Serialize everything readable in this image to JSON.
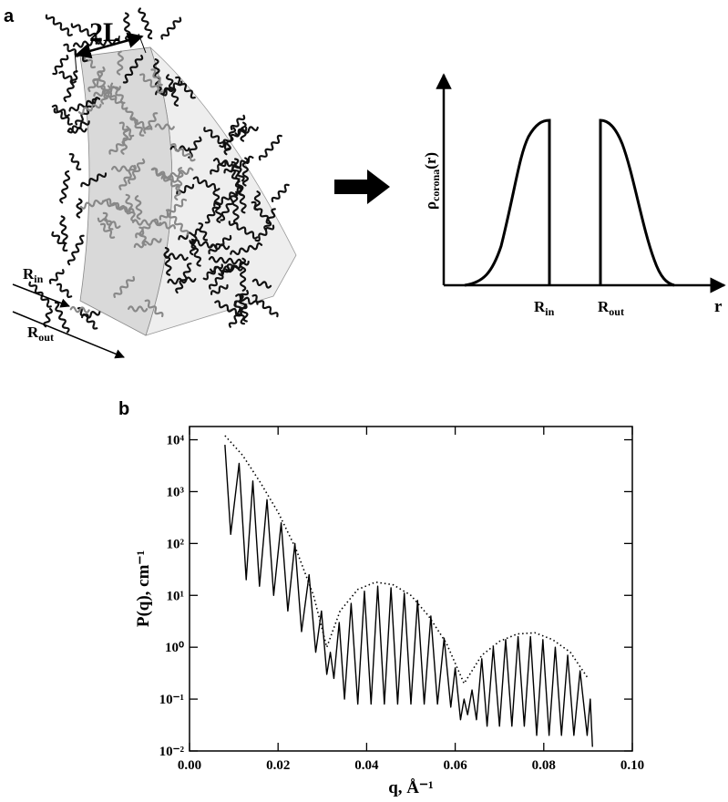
{
  "diagram": {
    "panel_label": "a",
    "two_l": "2L",
    "r_in": {
      "base": "R",
      "sub": "in"
    },
    "r_out": {
      "base": "R",
      "sub": "out"
    }
  },
  "profile": {
    "y_label": {
      "base": "ρ",
      "sub": "corona",
      "suffix": "(r)"
    },
    "tick_in": {
      "base": "R",
      "sub": "in"
    },
    "tick_out": {
      "base": "R",
      "sub": "out"
    },
    "x_label": "r"
  },
  "panel_b_label": "b",
  "chart_data": {
    "type": "line",
    "x_label": "q, Å⁻¹",
    "y_label": "P(q), cm⁻¹",
    "log_y": true,
    "xlim": [
      0,
      0.1
    ],
    "ylim": [
      0.01,
      18000
    ],
    "xticks": [
      {
        "value": 0,
        "label": "0.00"
      },
      {
        "value": 0.02,
        "label": "0.02"
      },
      {
        "value": 0.04,
        "label": "0.04"
      },
      {
        "value": 0.06,
        "label": "0.06"
      },
      {
        "value": 0.08,
        "label": "0.08"
      },
      {
        "value": 0.1,
        "label": "0.10"
      }
    ],
    "yticks": [
      {
        "value": 0.01,
        "label": "10⁻²"
      },
      {
        "value": 0.1,
        "label": "10⁻¹"
      },
      {
        "value": 1,
        "label": "10⁰"
      },
      {
        "value": 10,
        "label": "10¹"
      },
      {
        "value": 100,
        "label": "10²"
      },
      {
        "value": 1000,
        "label": "10³"
      },
      {
        "value": 10000,
        "label": "10⁴"
      }
    ],
    "series": [
      {
        "color": "#000000",
        "style": "solid",
        "x": [
          0.008,
          0.0093,
          0.0112,
          0.0128,
          0.0143,
          0.0158,
          0.0175,
          0.019,
          0.0207,
          0.0222,
          0.0238,
          0.0253,
          0.027,
          0.0285,
          0.0298,
          0.031,
          0.0318,
          0.0326,
          0.0338,
          0.035,
          0.0365,
          0.038,
          0.0395,
          0.041,
          0.0425,
          0.044,
          0.0455,
          0.047,
          0.0485,
          0.05,
          0.0515,
          0.053,
          0.0545,
          0.056,
          0.0575,
          0.059,
          0.06,
          0.0612,
          0.062,
          0.0628,
          0.0638,
          0.0648,
          0.066,
          0.0672,
          0.0686,
          0.07,
          0.0714,
          0.0728,
          0.0742,
          0.0756,
          0.077,
          0.0784,
          0.0798,
          0.0812,
          0.0826,
          0.084,
          0.0854,
          0.0868,
          0.0882,
          0.0898,
          0.0905,
          0.091
        ],
        "values": [
          8000,
          150,
          3500,
          20,
          1600,
          15,
          700,
          10,
          250,
          5,
          100,
          2,
          25,
          0.8,
          5,
          0.3,
          0.8,
          0.25,
          3,
          0.1,
          7,
          0.08,
          12,
          0.08,
          15,
          0.08,
          14,
          0.08,
          11,
          0.08,
          8,
          0.08,
          4,
          0.08,
          1.5,
          0.07,
          0.4,
          0.04,
          0.1,
          0.05,
          0.15,
          0.04,
          0.6,
          0.03,
          1,
          0.03,
          1.4,
          0.03,
          1.6,
          0.03,
          1.6,
          0.02,
          1.4,
          0.02,
          1,
          0.02,
          0.7,
          0.02,
          0.35,
          0.02,
          0.1,
          0.012
        ]
      },
      {
        "color": "#000000",
        "style": "dotted",
        "x": [
          0.008,
          0.012,
          0.016,
          0.02,
          0.024,
          0.028,
          0.031,
          0.034,
          0.038,
          0.042,
          0.046,
          0.05,
          0.054,
          0.058,
          0.062,
          0.066,
          0.07,
          0.074,
          0.078,
          0.082,
          0.086,
          0.09
        ],
        "values": [
          12000,
          5000,
          1500,
          400,
          80,
          10,
          1,
          5,
          13,
          18,
          16,
          10,
          4,
          1.2,
          0.2,
          0.7,
          1.3,
          1.8,
          1.9,
          1.4,
          0.8,
          0.25
        ]
      }
    ]
  }
}
